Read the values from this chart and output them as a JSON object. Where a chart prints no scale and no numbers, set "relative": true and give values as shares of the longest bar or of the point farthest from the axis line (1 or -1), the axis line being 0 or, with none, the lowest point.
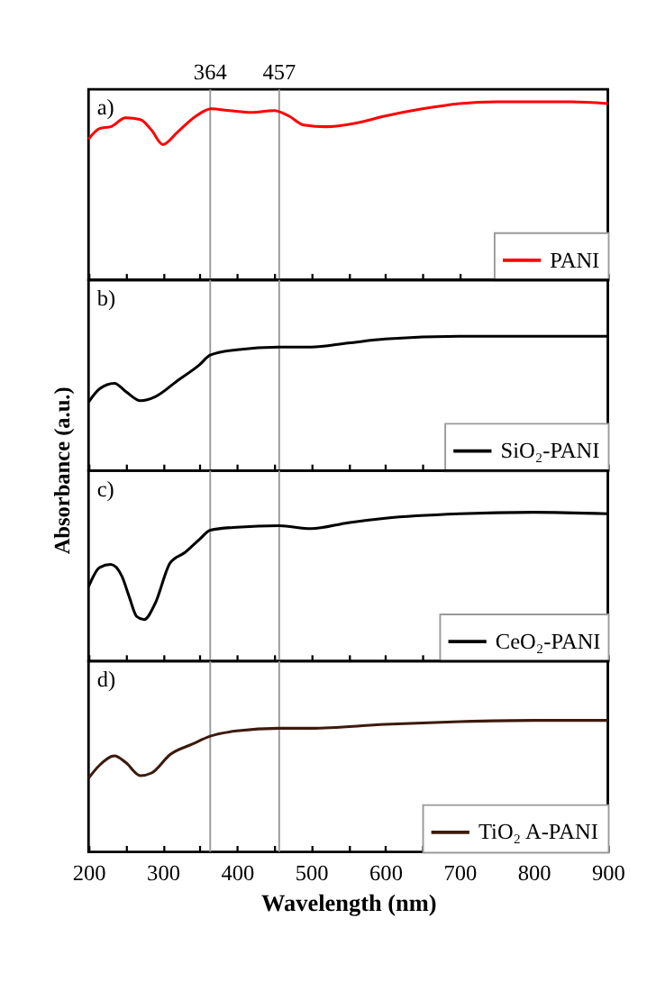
{
  "chart_data": [
    {
      "type": "line",
      "relative": true,
      "x": [
        200,
        215,
        230,
        250,
        270,
        285,
        300,
        320,
        345,
        365,
        390,
        420,
        450,
        470,
        490,
        520,
        560,
        600,
        650,
        700,
        750,
        800,
        850,
        900
      ],
      "series": [
        {
          "name": "PANI",
          "color": "#ff0000",
          "values": [
            0.79,
            0.85,
            0.86,
            0.91,
            0.9,
            0.84,
            0.76,
            0.83,
            0.92,
            0.96,
            0.95,
            0.94,
            0.95,
            0.92,
            0.87,
            0.86,
            0.88,
            0.92,
            0.96,
            0.99,
            1.0,
            1.0,
            1.0,
            0.99
          ]
        }
      ],
      "xlim": [
        200,
        900
      ],
      "xticks": [
        200,
        {
          "value": 250,
          "label": null
        },
        300,
        {
          "value": 350,
          "label": null
        },
        400,
        {
          "value": 450,
          "label": null
        },
        500,
        {
          "value": 550,
          "label": null
        },
        600,
        {
          "value": 650,
          "label": null
        },
        700,
        {
          "value": 750,
          "label": null
        },
        800,
        {
          "value": 850,
          "label": null
        },
        900
      ],
      "tick_labels": false,
      "annotations": [
        "a)"
      ],
      "legend": "bottom right",
      "grid": false,
      "line_style": "solid",
      "marker": "none",
      "ref_lines": [
        {
          "axis": "x",
          "value": 364,
          "label": "364",
          "color": "#999999"
        },
        {
          "axis": "x",
          "value": 457,
          "label": "457",
          "color": "#999999"
        }
      ]
    },
    {
      "type": "line",
      "relative": true,
      "ylabel": "Absorbance (a.u.)",
      "x": [
        200,
        215,
        235,
        250,
        270,
        290,
        320,
        350,
        364,
        400,
        457,
        500,
        550,
        600,
        700,
        800,
        900
      ],
      "series": [
        {
          "name": "SiO₂-PANI",
          "color": "#000000",
          "values": [
            0.51,
            0.61,
            0.65,
            0.59,
            0.52,
            0.55,
            0.67,
            0.79,
            0.86,
            0.9,
            0.92,
            0.92,
            0.95,
            0.98,
            1.0,
            1.0,
            1.0
          ]
        }
      ],
      "xlim": [
        200,
        900
      ],
      "xticks": [
        200,
        {
          "value": 250,
          "label": null
        },
        300,
        {
          "value": 350,
          "label": null
        },
        400,
        {
          "value": 450,
          "label": null
        },
        500,
        {
          "value": 550,
          "label": null
        },
        600,
        {
          "value": 650,
          "label": null
        },
        700,
        {
          "value": 750,
          "label": null
        },
        800,
        {
          "value": 850,
          "label": null
        },
        900
      ],
      "tick_labels": false,
      "annotations": [
        "b)"
      ],
      "legend": "bottom right",
      "grid": false,
      "line_style": "solid",
      "marker": "none",
      "ref_lines": [
        {
          "axis": "x",
          "value": 364,
          "label": null,
          "color": "#999999"
        },
        {
          "axis": "x",
          "value": 457,
          "label": null,
          "color": "#999999"
        }
      ]
    },
    {
      "type": "line",
      "relative": true,
      "x": [
        200,
        215,
        230,
        245,
        255,
        265,
        275,
        290,
        310,
        330,
        350,
        364,
        400,
        457,
        500,
        550,
        600,
        700,
        800,
        900
      ],
      "series": [
        {
          "name": "CeO₂-PANI",
          "color": "#000000",
          "values": [
            0.5,
            0.63,
            0.65,
            0.57,
            0.43,
            0.3,
            0.28,
            0.39,
            0.66,
            0.73,
            0.82,
            0.88,
            0.9,
            0.91,
            0.89,
            0.93,
            0.96,
            0.99,
            1.0,
            0.99
          ]
        }
      ],
      "xlim": [
        200,
        900
      ],
      "xticks": [
        200,
        {
          "value": 250,
          "label": null
        },
        300,
        {
          "value": 350,
          "label": null
        },
        400,
        {
          "value": 450,
          "label": null
        },
        500,
        {
          "value": 550,
          "label": null
        },
        600,
        {
          "value": 650,
          "label": null
        },
        700,
        {
          "value": 750,
          "label": null
        },
        800,
        {
          "value": 850,
          "label": null
        },
        900
      ],
      "tick_labels": false,
      "annotations": [
        "c)"
      ],
      "legend": "bottom right",
      "grid": false,
      "line_style": "solid",
      "marker": "none",
      "ref_lines": [
        {
          "axis": "x",
          "value": 364,
          "label": null,
          "color": "#999999"
        },
        {
          "axis": "x",
          "value": 457,
          "label": null,
          "color": "#999999"
        }
      ]
    },
    {
      "type": "line",
      "relative": true,
      "xlabel": "Wavelength (nm)",
      "x": [
        200,
        215,
        235,
        250,
        270,
        285,
        310,
        340,
        364,
        400,
        457,
        500,
        600,
        700,
        800,
        900
      ],
      "series": [
        {
          "name": "TiO₂ A-PANI",
          "color": "#3d1a0c",
          "values": [
            0.56,
            0.66,
            0.73,
            0.68,
            0.58,
            0.6,
            0.74,
            0.82,
            0.88,
            0.92,
            0.94,
            0.94,
            0.97,
            0.99,
            1.0,
            1.0
          ]
        }
      ],
      "xlim": [
        200,
        900
      ],
      "xticks": [
        200,
        {
          "value": 250,
          "label": null
        },
        300,
        {
          "value": 350,
          "label": null
        },
        400,
        {
          "value": 450,
          "label": null
        },
        500,
        {
          "value": 550,
          "label": null
        },
        600,
        {
          "value": 650,
          "label": null
        },
        700,
        {
          "value": 750,
          "label": null
        },
        800,
        {
          "value": 850,
          "label": null
        },
        900
      ],
      "tick_labels": "x",
      "annotations": [
        "d)"
      ],
      "legend": "bottom right",
      "grid": false,
      "line_style": "solid",
      "marker": "none",
      "ref_lines": [
        {
          "axis": "x",
          "value": 364,
          "label": null,
          "color": "#999999"
        },
        {
          "axis": "x",
          "value": 457,
          "label": null,
          "color": "#999999"
        }
      ]
    }
  ]
}
